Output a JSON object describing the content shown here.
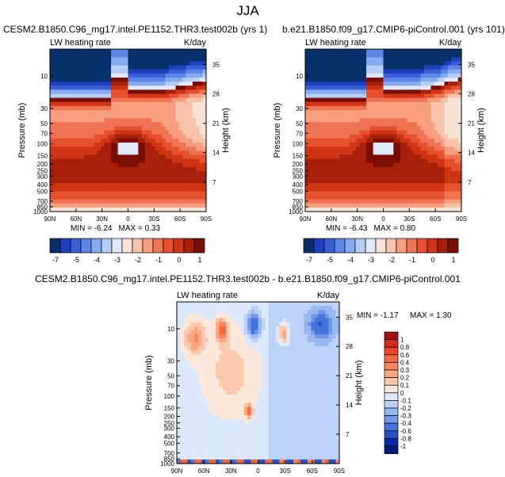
{
  "page_title": "JJA",
  "chart_data": [
    {
      "type": "heatmap",
      "title": "CESM2.B1850.C96_mg17.intel.PE1152.THR3.test002b (yrs 1)",
      "left_label": "LW heating rate",
      "right_label": "K/day",
      "xlabel": "",
      "ylabel": "Pressure (mb)",
      "ylabel_right": "Height (km)",
      "x_ticks": [
        "90N",
        "60N",
        "30N",
        "0",
        "30S",
        "60S",
        "90S"
      ],
      "y_ticks": [
        "10",
        "30",
        "50",
        "70",
        "100",
        "150",
        "200",
        "250",
        "300",
        "400",
        "500",
        "700",
        "850",
        "1000"
      ],
      "y_ticks_right": [
        "35",
        "28",
        "21",
        "14",
        "7"
      ],
      "min": -6.24,
      "max": 0.33,
      "min_label": "MIN = -6.24",
      "max_label": "MAX = 0.33",
      "grid": false
    },
    {
      "type": "heatmap",
      "title": "b.e21.B1850.f09_g17.CMIP6-piControl.001 (yrs 101)",
      "left_label": "LW heating rate",
      "right_label": "K/day",
      "xlabel": "",
      "ylabel": "Pressure (mb)",
      "ylabel_right": "Height (km)",
      "x_ticks": [
        "90N",
        "60N",
        "30N",
        "0",
        "30S",
        "60S",
        "90S"
      ],
      "y_ticks": [
        "10",
        "30",
        "50",
        "70",
        "100",
        "150",
        "200",
        "250",
        "300",
        "400",
        "500",
        "700",
        "850",
        "1000"
      ],
      "y_ticks_right": [
        "35",
        "28",
        "21",
        "14",
        "7"
      ],
      "min": -6.43,
      "max": 0.8,
      "min_label": "MIN = -6.43",
      "max_label": "MAX = 0.80",
      "grid": false
    },
    {
      "type": "heatmap",
      "title": "CESM2.B1850.C96_mg17.intel.PE1152.THR3.test002b - b.e21.B1850.f09_g17.CMIP6-piControl.001",
      "left_label": "LW heating rate",
      "right_label": "K/day",
      "xlabel": "",
      "ylabel": "Pressure (mb)",
      "ylabel_right": "Height (km)",
      "x_ticks": [
        "90N",
        "60N",
        "30N",
        "0",
        "30S",
        "60S",
        "90S"
      ],
      "y_ticks": [
        "10",
        "30",
        "50",
        "70",
        "100",
        "150",
        "200",
        "250",
        "300",
        "400",
        "500",
        "700",
        "850",
        "1000"
      ],
      "y_ticks_right": [
        "35",
        "28",
        "21",
        "14",
        "7"
      ],
      "min": -1.17,
      "max": 1.3,
      "min_label": "MIN = -1.17",
      "max_label": "MAX = 1.30",
      "grid": false
    }
  ],
  "colorbar_top": {
    "labels": [
      "-7",
      "-5",
      "-4",
      "-3",
      "-2",
      "-1",
      "0",
      "1"
    ],
    "colors": [
      "#08306b",
      "#1f3fbf",
      "#3a5fd6",
      "#5b86e5",
      "#86aaf0",
      "#b5cdf7",
      "#e0e9fb",
      "#f7e2d6",
      "#f8c3aa",
      "#f69e7e",
      "#f07453",
      "#e5512f",
      "#cf3515",
      "#a9200a",
      "#7a0d04"
    ]
  },
  "colorbar_diff": {
    "labels": [
      "1",
      "0.8",
      "0.6",
      "0.4",
      "0.3",
      "0.2",
      "0.1",
      "0",
      "-0.1",
      "-0.2",
      "-0.3",
      "-0.4",
      "-0.6",
      "-0.8",
      "-1"
    ],
    "colors": [
      "#a50f0f",
      "#d62a1a",
      "#ee4527",
      "#f5673f",
      "#f8875f",
      "#f9a882",
      "#fac8ab",
      "#fde9dc",
      "#dce8fb",
      "#bcd2f7",
      "#98b8f2",
      "#7098ea",
      "#4673dc",
      "#2450c8",
      "#0b2ba6",
      "#041a78"
    ]
  }
}
